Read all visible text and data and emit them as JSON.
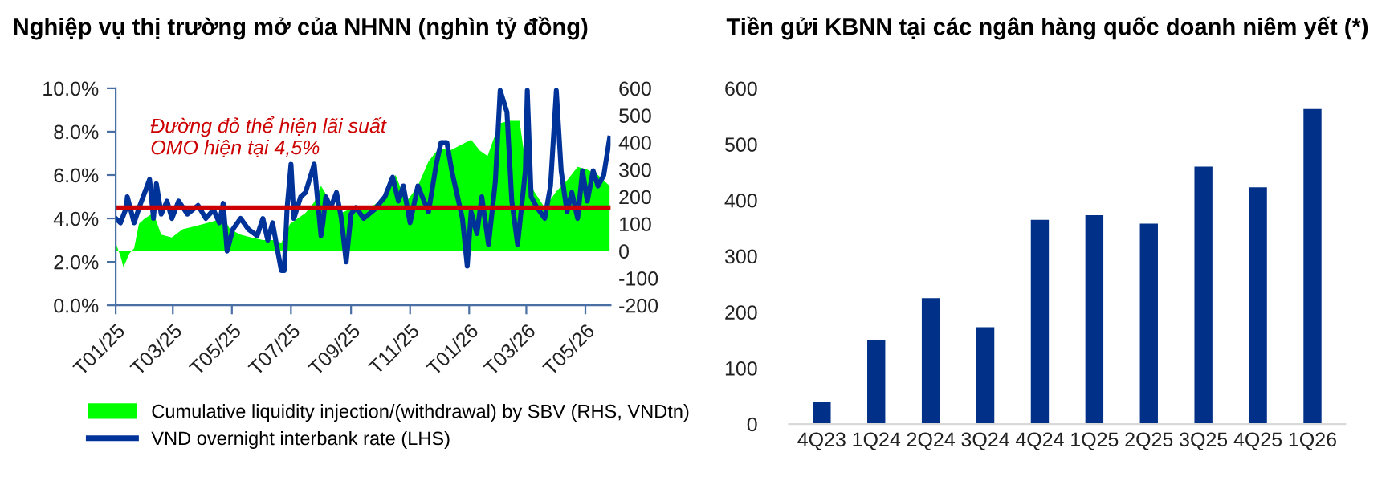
{
  "chart_data": [
    {
      "type": "line",
      "title": "Nghiệp vụ thị trường mở của NHNN (nghìn tỷ đồng)",
      "xlim": [
        "2025-01-01",
        "2026-05-27"
      ],
      "xticks": [
        {
          "value": "2025-01-01",
          "label": "T01/25"
        },
        {
          "value": "2025-03-01",
          "label": "T03/25"
        },
        {
          "value": "2025-05-01",
          "label": "T05/25"
        },
        {
          "value": "2025-07-01",
          "label": "T07/25"
        },
        {
          "value": "2025-09-01",
          "label": "T09/25"
        },
        {
          "value": "2025-11-01",
          "label": "T11/25"
        },
        {
          "value": "2026-01-01",
          "label": "T01/26"
        },
        {
          "value": "2026-03-01",
          "label": "T03/26"
        },
        {
          "value": "2026-05-01",
          "label": "T05/26"
        }
      ],
      "ylim": [
        0,
        10
      ],
      "yticks": [
        {
          "value": 0,
          "label": "0.0%"
        },
        {
          "value": 2,
          "label": "2.0%"
        },
        {
          "value": 4,
          "label": "4.0%"
        },
        {
          "value": 6,
          "label": "6.0%"
        },
        {
          "value": 8,
          "label": "8.0%"
        },
        {
          "value": 10,
          "label": "10.0%"
        }
      ],
      "y2lim": [
        -200,
        600
      ],
      "y2ticks": [
        -200,
        -100,
        0,
        100,
        200,
        300,
        400,
        500,
        600
      ],
      "legend": "bottom",
      "ref_lines": [
        {
          "axis": "y",
          "value": 4.5,
          "color": "#cc0000"
        }
      ],
      "annotations": [
        "Đường đỏ thể hiện lãi suất\nOMO hiện tại 4,5%"
      ],
      "series": [
        {
          "type": "area",
          "axis": "y2",
          "name": "Cumulative liquidity injection/(withdrawal) by SBV (RHS, VNDtn)",
          "color": "#00ff00",
          "x": [
            "2025-01-01",
            "2025-01-06",
            "2025-01-09",
            "2025-01-15",
            "2025-01-20",
            "2025-01-25",
            "2025-01-31",
            "2025-02-09",
            "2025-02-17",
            "2025-02-28",
            "2025-03-11",
            "2025-03-22",
            "2025-04-02",
            "2025-04-12",
            "2025-04-23",
            "2025-04-29",
            "2025-05-10",
            "2025-05-21",
            "2025-06-02",
            "2025-06-13",
            "2025-06-21",
            "2025-06-30",
            "2025-07-08",
            "2025-07-16",
            "2025-07-25",
            "2025-08-01",
            "2025-08-11",
            "2025-08-22",
            "2025-09-03",
            "2025-09-14",
            "2025-09-25",
            "2025-10-06",
            "2025-10-17",
            "2025-10-28",
            "2025-11-09",
            "2025-11-20",
            "2025-12-01",
            "2025-12-12",
            "2025-12-23",
            "2026-01-03",
            "2026-01-12",
            "2026-01-20",
            "2026-02-01",
            "2026-02-11",
            "2026-02-22",
            "2026-03-01",
            "2026-03-09",
            "2026-03-20",
            "2026-04-01",
            "2026-04-12",
            "2026-04-23",
            "2026-05-03",
            "2026-05-14",
            "2026-05-26"
          ],
          "values": [
            30,
            -20,
            -60,
            -10,
            10,
            100,
            120,
            140,
            60,
            50,
            80,
            90,
            100,
            110,
            120,
            80,
            60,
            50,
            40,
            40,
            30,
            100,
            120,
            140,
            180,
            240,
            180,
            140,
            160,
            160,
            170,
            200,
            280,
            180,
            240,
            330,
            380,
            370,
            390,
            410,
            370,
            350,
            470,
            480,
            480,
            300,
            220,
            160,
            220,
            260,
            310,
            300,
            280,
            240
          ]
        },
        {
          "type": "line",
          "axis": "y",
          "name": "VND overnight interbank rate (LHS)",
          "color": "#003399",
          "x": [
            "2025-01-01",
            "2025-01-06",
            "2025-01-12",
            "2025-01-13",
            "2025-01-20",
            "2025-01-26",
            "2025-02-05",
            "2025-02-09",
            "2025-02-12",
            "2025-02-17",
            "2025-02-23",
            "2025-02-28",
            "2025-03-07",
            "2025-03-16",
            "2025-03-27",
            "2025-04-04",
            "2025-04-12",
            "2025-04-18",
            "2025-04-22",
            "2025-04-26",
            "2025-05-02",
            "2025-05-10",
            "2025-05-18",
            "2025-05-27",
            "2025-06-02",
            "2025-06-07",
            "2025-06-12",
            "2025-06-16",
            "2025-06-21",
            "2025-06-24",
            "2025-06-27",
            "2025-07-01",
            "2025-07-04",
            "2025-07-11",
            "2025-07-16",
            "2025-07-25",
            "2025-08-01",
            "2025-08-03",
            "2025-08-06",
            "2025-08-11",
            "2025-08-17",
            "2025-08-22",
            "2025-08-27",
            "2025-09-01",
            "2025-09-06",
            "2025-09-14",
            "2025-09-25",
            "2025-10-06",
            "2025-10-14",
            "2025-10-20",
            "2025-10-25",
            "2025-11-01",
            "2025-11-09",
            "2025-11-20",
            "2025-11-28",
            "2025-12-03",
            "2025-12-09",
            "2025-12-14",
            "2025-12-20",
            "2025-12-25",
            "2025-12-30",
            "2026-01-03",
            "2026-01-09",
            "2026-01-14",
            "2026-01-21",
            "2026-01-28",
            "2026-02-02",
            "2026-02-09",
            "2026-02-14",
            "2026-02-20",
            "2026-02-28",
            "2026-03-02",
            "2026-03-06",
            "2026-03-12",
            "2026-03-20",
            "2026-03-26",
            "2026-04-01",
            "2026-04-06",
            "2026-04-12",
            "2026-04-17",
            "2026-04-23",
            "2026-04-28",
            "2026-05-03",
            "2026-05-09",
            "2026-05-14",
            "2026-05-20",
            "2026-05-26"
          ],
          "values": [
            4.0,
            3.8,
            4.5,
            5.0,
            3.8,
            4.6,
            5.8,
            4.0,
            5.6,
            4.2,
            4.8,
            4.0,
            4.8,
            4.2,
            4.6,
            4.0,
            4.4,
            3.8,
            4.7,
            2.5,
            3.5,
            4.0,
            3.5,
            3.2,
            4.0,
            3.0,
            3.8,
            2.8,
            1.6,
            1.6,
            4.5,
            6.5,
            4.0,
            5.0,
            5.2,
            6.5,
            3.2,
            3.8,
            5.0,
            4.5,
            5.2,
            4.0,
            2.0,
            4.2,
            4.5,
            4.0,
            4.4,
            5.0,
            5.9,
            4.8,
            5.5,
            3.8,
            5.5,
            4.3,
            6.5,
            7.5,
            7.5,
            6.2,
            5.0,
            4.0,
            1.8,
            4.3,
            3.3,
            5.0,
            2.8,
            5.7,
            9.9,
            8.9,
            4.8,
            2.8,
            6.2,
            9.9,
            5.0,
            4.5,
            4.0,
            5.5,
            9.9,
            6.2,
            4.3,
            5.2,
            4.0,
            6.2,
            4.8,
            6.2,
            5.5,
            6.0,
            7.7
          ]
        }
      ]
    },
    {
      "type": "bar",
      "title": "Tiền gửi KBNN tại các ngân hàng quốc doanh niêm yết (*)",
      "categories": [
        "4Q23",
        "1Q24",
        "2Q24",
        "3Q24",
        "4Q24",
        "1Q25",
        "2Q25",
        "3Q25",
        "4Q25",
        "1Q26"
      ],
      "values": [
        40,
        150,
        225,
        173,
        365,
        373,
        358,
        460,
        423,
        563
      ],
      "color": "#003087",
      "ylim": [
        0,
        600
      ],
      "yticks": [
        0,
        100,
        200,
        300,
        400,
        500,
        600
      ]
    }
  ]
}
